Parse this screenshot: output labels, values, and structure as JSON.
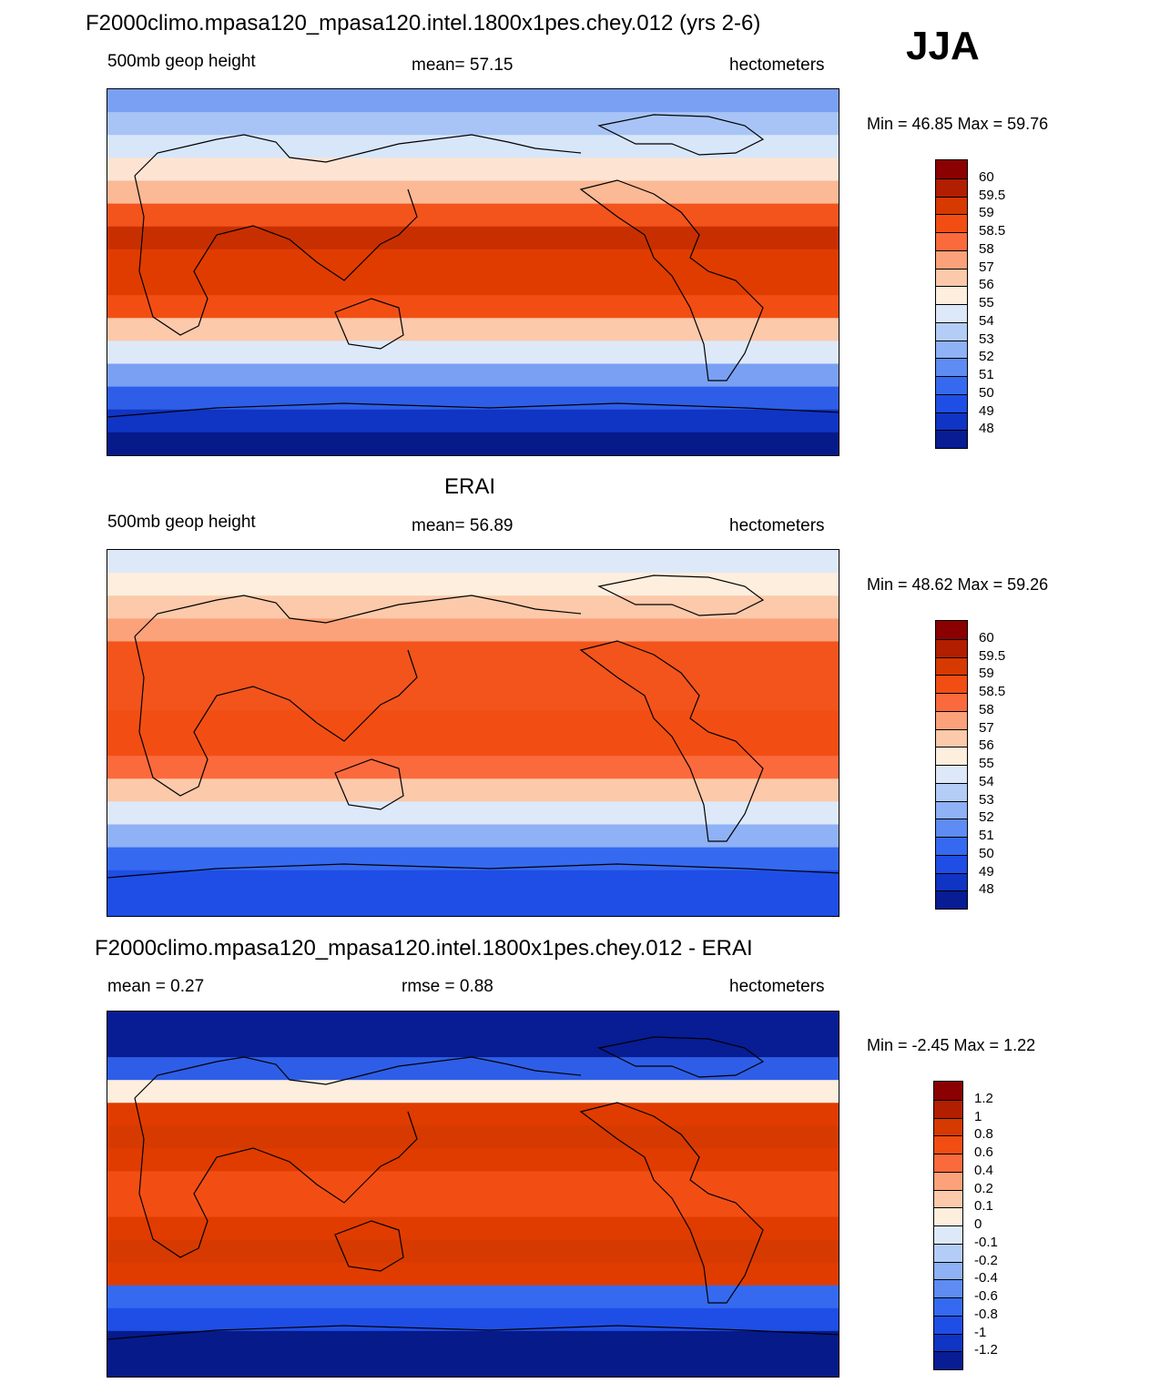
{
  "page": {
    "season_label": "JJA"
  },
  "panels": [
    {
      "title": "F2000climo.mpasa120_mpasa120.intel.1800x1pes.chey.012 (yrs 2-6)",
      "left_label": "500mb geop height",
      "center_label": "mean=  57.15",
      "right_label": "hectometers",
      "minmax": "Min =  46.85 Max =  59.76",
      "colorbar_colors": [
        "#8b0000",
        "#b21e00",
        "#d63a00",
        "#f24e14",
        "#fb6a3c",
        "#fba27a",
        "#fcc9aa",
        "#fdeedd",
        "#dde9f9",
        "#b4cdf7",
        "#8fb1f5",
        "#5e8cf2",
        "#356af0",
        "#1f4ee6",
        "#1034c4",
        "#081c93"
      ],
      "colorbar_labels": [
        "60",
        "59.5",
        "59",
        "58.5",
        "58",
        "57",
        "56",
        "55",
        "54",
        "53",
        "52",
        "51",
        "50",
        "49",
        "48"
      ],
      "bands": [
        "#7aa0f4",
        "#a8c4f6",
        "#d8e6f9",
        "#fde4d2",
        "#fbb996",
        "#f2541c",
        "#c82f00",
        "#e03c00",
        "#e03c00",
        "#f24e14",
        "#fcc9aa",
        "#dde9f9",
        "#7aa0f4",
        "#2e5ee8",
        "#1034c4",
        "#061a8a"
      ]
    },
    {
      "title": "ERAI",
      "left_label": "500mb geop height",
      "center_label": "mean=  56.89",
      "right_label": "hectometers",
      "minmax": "Min =  48.62 Max =  59.26",
      "colorbar_colors": [
        "#8b0000",
        "#b21e00",
        "#d63a00",
        "#f24e14",
        "#fb6a3c",
        "#fba27a",
        "#fcc9aa",
        "#fdeedd",
        "#dde9f9",
        "#b4cdf7",
        "#8fb1f5",
        "#5e8cf2",
        "#356af0",
        "#1f4ee6",
        "#1034c4",
        "#081c93"
      ],
      "colorbar_labels": [
        "60",
        "59.5",
        "59",
        "58.5",
        "58",
        "57",
        "56",
        "55",
        "54",
        "53",
        "52",
        "51",
        "50",
        "49",
        "48"
      ],
      "bands": [
        "#dde9f9",
        "#fdeedd",
        "#fcc9aa",
        "#fba27a",
        "#f2541c",
        "#f2541c",
        "#f2541c",
        "#f24e14",
        "#f24e14",
        "#fb6a3c",
        "#fcc9aa",
        "#dde9f9",
        "#8fb1f5",
        "#356af0",
        "#1f4ee6",
        "#1f4ee6"
      ]
    },
    {
      "title": "F2000climo.mpasa120_mpasa120.intel.1800x1pes.chey.012 - ERAI",
      "left_label": "mean =   0.27",
      "center_label": "rmse =   0.88",
      "right_label": "hectometers",
      "minmax": "Min =  -2.45 Max =   1.22",
      "colorbar_colors": [
        "#8b0000",
        "#b21e00",
        "#d63a00",
        "#f24e14",
        "#fb6a3c",
        "#fba27a",
        "#fcc9aa",
        "#fdeedd",
        "#dde9f9",
        "#b4cdf7",
        "#8fb1f5",
        "#5e8cf2",
        "#356af0",
        "#1f4ee6",
        "#1034c4",
        "#081c93"
      ],
      "colorbar_labels": [
        "1.2",
        "1",
        "0.8",
        "0.6",
        "0.4",
        "0.2",
        "0.1",
        "0",
        "-0.1",
        "-0.2",
        "-0.4",
        "-0.6",
        "-0.8",
        "-1",
        "-1.2"
      ],
      "bands": [
        "#081c93",
        "#081c93",
        "#2e5ee8",
        "#fdeedd",
        "#e03c00",
        "#d63a00",
        "#e03c00",
        "#f24e14",
        "#f24e14",
        "#e03c00",
        "#d63a00",
        "#e03c00",
        "#356af0",
        "#1f4ee6",
        "#061a8a",
        "#061a8a"
      ]
    }
  ]
}
